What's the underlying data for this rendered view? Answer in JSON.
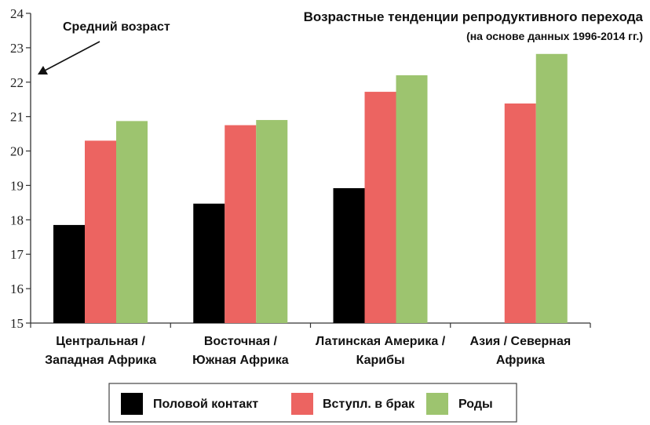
{
  "chart_data": {
    "type": "bar",
    "title": "Возрастные тенденции репродуктивного перехода",
    "subtitle": "(на основе данных 1996-2014 гг.)",
    "ylabel": "Средний возраст",
    "xlabel": "",
    "ylim": [
      15,
      24
    ],
    "yticks": [
      15,
      16,
      17,
      18,
      19,
      20,
      21,
      22,
      23,
      24
    ],
    "grid": false,
    "legend_position": "bottom",
    "categories": [
      [
        "Центральная /",
        "Западная Африка"
      ],
      [
        "Восточная /",
        "Южная Африка"
      ],
      [
        "Латинская Америка /",
        "Карибы"
      ],
      [
        "Азия / Северная",
        "Африка"
      ]
    ],
    "series": [
      {
        "name": "Половой контакт",
        "color": "#000000",
        "values": [
          17.85,
          18.47,
          18.92,
          null
        ]
      },
      {
        "name": "Вступл. в брак",
        "color": "#ec6461",
        "values": [
          20.3,
          20.75,
          21.72,
          21.38
        ]
      },
      {
        "name": "Роды",
        "color": "#9dc46f",
        "values": [
          20.87,
          20.9,
          22.2,
          22.82
        ]
      }
    ]
  }
}
